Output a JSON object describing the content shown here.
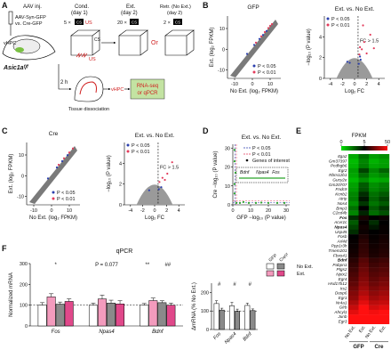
{
  "panel_a": {
    "label": "A",
    "injection": "AAV inj.",
    "construct_1": "AAV-Syn-GFP",
    "construct_2": "vs. Cre-GFP",
    "region": "vHPC",
    "mouse": "Asic1aᶠ/ᶠ",
    "cond": "Cond.",
    "cond_day": "(day 1)",
    "cond_reps": "5 ×",
    "cs": "CS",
    "us": "US",
    "ext": "Ext.",
    "ext_day": "(day 2)",
    "ext_reps": "20 ×",
    "or": "Or",
    "retr": "Retr. (No Ext.)",
    "retr_day": "(day 2)",
    "retr_reps": "2 ×",
    "wait": "2 h",
    "region_2": "vHPC",
    "dissociation": "Tissue dissociation",
    "output_1": "RNA-seq",
    "output_2": "or qPCR"
  },
  "panel_b": {
    "label": "B",
    "title": "GFP",
    "scatter": {
      "type": "scatter",
      "xlabel": "No Ext. (log₂ FPKM)",
      "ylabel": "Ext. (log₂ FPKM)",
      "xlim": [
        -14,
        16
      ],
      "ylim": [
        -14,
        16
      ],
      "xticks": [
        -10,
        0,
        10
      ],
      "yticks": [
        -10,
        0,
        10
      ],
      "series": [
        {
          "name": "P < 0.05",
          "color": "#2b3fae",
          "x": [
            -3,
            1,
            4,
            6,
            8
          ],
          "y": [
            -2.2,
            2.1,
            5.0,
            6.9,
            8.8
          ]
        },
        {
          "name": "P < 0.01",
          "color": "#e33b5b",
          "x": [
            2,
            5,
            7,
            9,
            10,
            11
          ],
          "y": [
            3.2,
            6.2,
            8.3,
            10.2,
            11.3,
            12.1
          ]
        }
      ]
    },
    "volcano": {
      "type": "scatter",
      "title": "Ext. vs. No Ext.",
      "xlabel": "Log₂ FC",
      "ylabel": "−log₁₀ (P value)",
      "xlim": [
        -5,
        5
      ],
      "ylim": [
        0,
        6
      ],
      "xticks": [
        -4,
        -2,
        0,
        2,
        4
      ],
      "yticks": [
        0,
        2,
        4
      ],
      "threshold_x": 0.58,
      "annotation": "FC > 1.5",
      "series": [
        {
          "name": "P < 0.05",
          "color": "#2b3fae",
          "x": [
            0.7,
            -0.8,
            1.0,
            -1.2,
            0.9
          ],
          "y": [
            1.4,
            1.5,
            1.8,
            1.6,
            2.1
          ]
        },
        {
          "name": "P < 0.01",
          "color": "#e33b5b",
          "x": [
            0.8,
            1.2,
            1.6,
            2.0,
            2.6,
            3.2,
            1.4,
            0.9
          ],
          "y": [
            2.3,
            2.8,
            3.5,
            2.4,
            4.2,
            2.9,
            5.1,
            3.0
          ]
        }
      ]
    }
  },
  "panel_c": {
    "label": "C",
    "title": "Cre",
    "scatter": {
      "type": "scatter",
      "xlabel": "No Ext. (log₂ FPKM)",
      "ylabel": "Ext. (log₂ FPKM)",
      "xlim": [
        -14,
        16
      ],
      "ylim": [
        -14,
        16
      ],
      "xticks": [
        -10,
        0,
        10
      ],
      "yticks": [
        -10,
        0,
        10
      ],
      "series": [
        {
          "name": "P < 0.05",
          "color": "#2b3fae",
          "x": [
            -2,
            3,
            6,
            9
          ],
          "y": [
            -1.3,
            4.0,
            7.0,
            9.9
          ]
        },
        {
          "name": "P < 0.01",
          "color": "#e33b5b",
          "x": [
            4,
            7,
            10,
            12
          ],
          "y": [
            5.3,
            8.4,
            11.2,
            13.1
          ]
        }
      ]
    },
    "volcano": {
      "type": "scatter",
      "title": "Ext. vs. No Ext.",
      "xlabel": "Log₂ FC",
      "ylabel": "−log₁₀ (P value)",
      "xlim": [
        -5,
        5
      ],
      "ylim": [
        0,
        6
      ],
      "xticks": [
        -4,
        -2,
        0,
        2,
        4
      ],
      "yticks": [
        0,
        2,
        4
      ],
      "threshold_x": 0.58,
      "annotation": "FC > 1.5",
      "series": [
        {
          "name": "P < 0.05",
          "color": "#2b3fae",
          "x": [
            0.7,
            -0.9,
            1.1
          ],
          "y": [
            1.5,
            1.4,
            1.7
          ]
        },
        {
          "name": "P < 0.01",
          "color": "#e33b5b",
          "x": [
            0.8,
            1.3,
            2.1,
            2.9,
            1.7
          ],
          "y": [
            2.2,
            2.6,
            3.0,
            4.1,
            2.4
          ]
        }
      ]
    }
  },
  "panel_d": {
    "label": "D",
    "type": "scatter",
    "title": "Ext. vs. No Ext.",
    "xlabel": "GFP −log₁₀ (P value)",
    "ylabel": "Cre −log₁₀ (P value)",
    "xlim": [
      0,
      32
    ],
    "ylim": [
      0,
      32
    ],
    "xticks": [
      0,
      10,
      20,
      30
    ],
    "yticks": [
      0,
      10,
      20,
      30
    ],
    "thresholds": [
      {
        "name": "P < 0.05",
        "color": "#2b3fae",
        "value": 1.3
      },
      {
        "name": "P < 0.01",
        "color": "#e33b5b",
        "value": 2
      }
    ],
    "genes": {
      "name": "Genes of interest",
      "color": "#2aa52a",
      "x": [
        2,
        4,
        6,
        9,
        13,
        16,
        20,
        25,
        29,
        1,
        1,
        1.5,
        1,
        1
      ],
      "y": [
        1,
        1,
        1.5,
        1,
        1,
        1.2,
        1,
        1,
        1,
        6,
        11,
        17,
        23,
        29
      ]
    },
    "inset_labels": [
      "Bdnf",
      "Npas4",
      "Fos"
    ]
  },
  "panel_e": {
    "label": "E",
    "colorbar": {
      "title": "FPKM",
      "ticks": [
        0,
        5,
        50
      ],
      "colors": [
        "#00e000",
        "#000000",
        "#ff1010"
      ]
    },
    "groups": [
      "GFP",
      "Cre"
    ],
    "columns": [
      "No Ext.",
      "Ext.",
      "No Ext.",
      "Ext."
    ],
    "highlighted": [
      "Fos",
      "Npas4",
      "Bdnf"
    ],
    "genes": [
      "Itga2",
      "Gm37397",
      "Pcdhgb6",
      "Egr2",
      "Rbm12b1",
      "Gucy2e",
      "Gm20707",
      "Fndc9",
      "Kcnb2",
      "Atrip",
      "Nos4",
      "Bmp3",
      "C2cd4b",
      "Fos",
      "Acvr1c",
      "Npas4",
      "Usp45",
      "Fosb",
      "Arl4d",
      "Ppp1r3h",
      "Tmem201",
      "Fbxo41",
      "Bdnf",
      "Pabpn1",
      "Ptgs2",
      "Nptx2",
      "Egr4",
      "Hsd17b12",
      "Irs2",
      "Dusp6",
      "Egr1",
      "Nr4a1",
      "Glrb",
      "Ahcyl1",
      "Junb",
      "Egr3"
    ],
    "values": [
      [
        1.2,
        2.5,
        1.5,
        1.8
      ],
      [
        0.8,
        2.0,
        1.0,
        1.4
      ],
      [
        1.0,
        2.2,
        1.3,
        1.5
      ],
      [
        1.5,
        3.5,
        2.0,
        2.8
      ],
      [
        1.3,
        2.6,
        1.6,
        2.0
      ],
      [
        0.9,
        1.8,
        1.1,
        1.3
      ],
      [
        1.4,
        3.0,
        1.8,
        2.2
      ],
      [
        1.6,
        3.2,
        2.0,
        2.4
      ],
      [
        2.0,
        4.0,
        2.5,
        3.0
      ],
      [
        2.2,
        4.5,
        2.8,
        3.5
      ],
      [
        1.8,
        3.8,
        2.4,
        3.0
      ],
      [
        2.5,
        5.0,
        3.0,
        3.8
      ],
      [
        2.0,
        4.2,
        2.6,
        3.2
      ],
      [
        4,
        9,
        5,
        7
      ],
      [
        3,
        6,
        4,
        5
      ],
      [
        3.5,
        8,
        4.5,
        6
      ],
      [
        4,
        7,
        5,
        6
      ],
      [
        5,
        10,
        6,
        8
      ],
      [
        6,
        12,
        7,
        9
      ],
      [
        7,
        13,
        8,
        10
      ],
      [
        8,
        14,
        9,
        11
      ],
      [
        9,
        15,
        10,
        12
      ],
      [
        12,
        20,
        14,
        16
      ],
      [
        14,
        22,
        16,
        18
      ],
      [
        16,
        24,
        18,
        20
      ],
      [
        18,
        26,
        20,
        22
      ],
      [
        20,
        28,
        22,
        25
      ],
      [
        22,
        30,
        24,
        27
      ],
      [
        25,
        33,
        27,
        30
      ],
      [
        28,
        36,
        30,
        33
      ],
      [
        30,
        40,
        33,
        36
      ],
      [
        35,
        45,
        38,
        40
      ],
      [
        40,
        50,
        42,
        45
      ],
      [
        45,
        55,
        48,
        50
      ],
      [
        50,
        60,
        52,
        55
      ],
      [
        55,
        65,
        58,
        60
      ]
    ]
  },
  "panel_f": {
    "label": "F",
    "title": "qPCR",
    "legend": {
      "groups": [
        "GFP",
        "Creᶠ/ᶠ"
      ],
      "rows": [
        "No Ext.",
        "Ext."
      ]
    },
    "mrna": {
      "type": "bar",
      "ylabel": "Normalized mRNA",
      "categories": [
        "Fos",
        "Npas4",
        "Bdnf"
      ],
      "ylim": [
        0,
        300
      ],
      "yticks": [
        0,
        100,
        200,
        300
      ],
      "reference": 100,
      "series": [
        {
          "color": "#ffffff",
          "values": [
            100,
            100,
            100
          ],
          "errors": [
            12,
            10,
            8
          ]
        },
        {
          "color": "#f39bbd",
          "values": [
            140,
            130,
            122
          ],
          "errors": [
            15,
            18,
            12
          ]
        },
        {
          "color": "#8a8a8a",
          "values": [
            105,
            110,
            112
          ],
          "errors": [
            10,
            14,
            9
          ]
        },
        {
          "color": "#e0488a",
          "values": [
            118,
            106,
            100
          ],
          "errors": [
            12,
            15,
            10
          ]
        }
      ],
      "annotations": [
        [
          "*"
        ],
        [
          "P = 0.077"
        ],
        [
          "**",
          "##"
        ]
      ]
    },
    "delta": {
      "type": "bar",
      "ylabel": "ΔmRNA (% No Ext.)",
      "categories": [
        "Fos",
        "Npas4",
        "Bdnf"
      ],
      "ylim": [
        0,
        250
      ],
      "yticks": [
        0,
        100,
        200
      ],
      "reference": 100,
      "series": [
        {
          "color": "#ffffff",
          "values": [
            140,
            128,
            130
          ],
          "errors": [
            15,
            18,
            12
          ]
        },
        {
          "color": "#8a8a8a",
          "values": [
            105,
            98,
            102
          ],
          "errors": [
            10,
            12,
            9
          ]
        }
      ],
      "annotations": [
        [
          "#"
        ],
        [
          "#"
        ],
        [
          "#"
        ]
      ]
    }
  }
}
